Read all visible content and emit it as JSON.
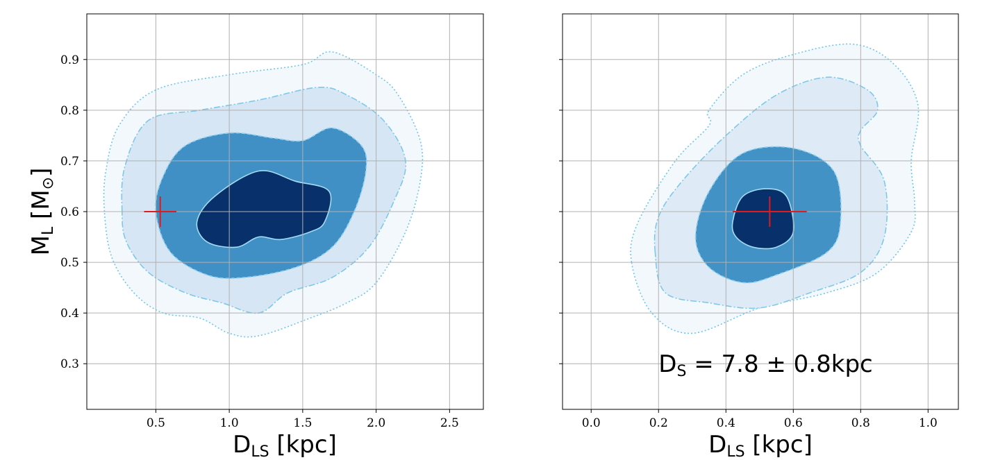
{
  "chart_data": [
    {
      "type": "contour",
      "panel": "left",
      "xlabel_main": "D",
      "xlabel_sub": "LS",
      "xlabel_unit": " [kpc]",
      "ylabel_main": "M",
      "ylabel_sub": "L",
      "ylabel_unit_open": " [M",
      "ylabel_unit_sub": "⊙",
      "ylabel_unit_close": "]",
      "xlim": [
        0.03,
        2.73
      ],
      "ylim": [
        0.21,
        0.99
      ],
      "xticks": [
        0.5,
        1.0,
        1.5,
        2.0,
        2.5
      ],
      "xtick_labels": [
        "0.5",
        "1.0",
        "1.5",
        "2.0",
        "2.5"
      ],
      "yticks": [
        0.3,
        0.4,
        0.5,
        0.6,
        0.7,
        0.8,
        0.9
      ],
      "ytick_labels": [
        "0.3",
        "0.4",
        "0.5",
        "0.6",
        "0.7",
        "0.8",
        "0.9"
      ],
      "grid": true,
      "marker": {
        "x": 0.53,
        "y": 0.6,
        "xerr": 0.11,
        "yerr": 0.03,
        "color": "#e31a1c"
      },
      "contours": [
        {
          "level": "outer",
          "fill": "#f3f8fd",
          "stroke": "#6ec6ea",
          "dash": "dotted",
          "points": [
            [
              0.15,
              0.6
            ],
            [
              0.16,
              0.68
            ],
            [
              0.25,
              0.77
            ],
            [
              0.5,
              0.84
            ],
            [
              1.0,
              0.87
            ],
            [
              1.5,
              0.89
            ],
            [
              1.7,
              0.915
            ],
            [
              2.0,
              0.87
            ],
            [
              2.15,
              0.83
            ],
            [
              2.3,
              0.74
            ],
            [
              2.3,
              0.66
            ],
            [
              2.2,
              0.56
            ],
            [
              2.0,
              0.46
            ],
            [
              1.8,
              0.42
            ],
            [
              1.55,
              0.39
            ],
            [
              1.2,
              0.355
            ],
            [
              1.0,
              0.36
            ],
            [
              0.8,
              0.39
            ],
            [
              0.55,
              0.4
            ],
            [
              0.35,
              0.44
            ],
            [
              0.2,
              0.51
            ]
          ]
        },
        {
          "level": "95%",
          "fill": "#d7e6f4",
          "stroke": "#7dc8e8",
          "dash": "dashdot",
          "points": [
            [
              0.27,
              0.6
            ],
            [
              0.29,
              0.69
            ],
            [
              0.45,
              0.78
            ],
            [
              0.8,
              0.8
            ],
            [
              1.2,
              0.82
            ],
            [
              1.6,
              0.845
            ],
            [
              1.8,
              0.83
            ],
            [
              2.05,
              0.78
            ],
            [
              2.2,
              0.7
            ],
            [
              2.12,
              0.62
            ],
            [
              1.95,
              0.53
            ],
            [
              1.7,
              0.47
            ],
            [
              1.4,
              0.44
            ],
            [
              1.2,
              0.4
            ],
            [
              0.95,
              0.42
            ],
            [
              0.7,
              0.44
            ],
            [
              0.45,
              0.48
            ],
            [
              0.3,
              0.54
            ]
          ]
        },
        {
          "level": "68%",
          "fill": "#4090c6",
          "stroke": "#8fd1ee",
          "dash": "dashed",
          "points": [
            [
              0.5,
              0.6
            ],
            [
              0.55,
              0.67
            ],
            [
              0.7,
              0.73
            ],
            [
              1.0,
              0.755
            ],
            [
              1.3,
              0.745
            ],
            [
              1.5,
              0.74
            ],
            [
              1.7,
              0.765
            ],
            [
              1.9,
              0.73
            ],
            [
              1.93,
              0.68
            ],
            [
              1.85,
              0.6
            ],
            [
              1.7,
              0.53
            ],
            [
              1.45,
              0.49
            ],
            [
              1.1,
              0.47
            ],
            [
              0.85,
              0.475
            ],
            [
              0.6,
              0.52
            ]
          ]
        },
        {
          "level": "39%",
          "fill": "#08306b",
          "stroke": "#a5dcf3",
          "dash": "solid",
          "points": [
            [
              0.78,
              0.58
            ],
            [
              0.9,
              0.63
            ],
            [
              1.2,
              0.68
            ],
            [
              1.45,
              0.66
            ],
            [
              1.68,
              0.64
            ],
            [
              1.65,
              0.58
            ],
            [
              1.55,
              0.56
            ],
            [
              1.35,
              0.545
            ],
            [
              1.2,
              0.55
            ],
            [
              1.05,
              0.53
            ],
            [
              0.85,
              0.54
            ]
          ]
        }
      ]
    },
    {
      "type": "contour",
      "panel": "right",
      "xlabel_main": "D",
      "xlabel_sub": "LS",
      "xlabel_unit": " [kpc]",
      "xlim": [
        -0.085,
        1.09
      ],
      "ylim": [
        0.21,
        0.99
      ],
      "xticks": [
        0.0,
        0.2,
        0.4,
        0.6,
        0.8,
        1.0
      ],
      "xtick_labels": [
        "0.0",
        "0.2",
        "0.4",
        "0.6",
        "0.8",
        "1.0"
      ],
      "yticks": [
        0.3,
        0.4,
        0.5,
        0.6,
        0.7,
        0.8,
        0.9
      ],
      "grid": true,
      "annotation": {
        "main": "D",
        "sub": "S",
        "rest": " = 7.8 ± 0.8kpc",
        "x": 0.2,
        "y": 0.3
      },
      "marker": {
        "x": 0.53,
        "y": 0.6,
        "xerr": 0.11,
        "yerr": 0.03,
        "color": "#e31a1c"
      },
      "contours": [
        {
          "level": "outer",
          "fill": "#f3f8fd",
          "stroke": "#6ec6ea",
          "dash": "dotted",
          "points": [
            [
              0.12,
              0.5
            ],
            [
              0.14,
              0.58
            ],
            [
              0.25,
              0.7
            ],
            [
              0.35,
              0.77
            ],
            [
              0.35,
              0.8
            ],
            [
              0.45,
              0.87
            ],
            [
              0.6,
              0.91
            ],
            [
              0.78,
              0.93
            ],
            [
              0.9,
              0.89
            ],
            [
              0.97,
              0.81
            ],
            [
              0.95,
              0.7
            ],
            [
              0.96,
              0.62
            ],
            [
              0.95,
              0.56
            ],
            [
              0.85,
              0.48
            ],
            [
              0.7,
              0.44
            ],
            [
              0.5,
              0.41
            ],
            [
              0.3,
              0.36
            ],
            [
              0.18,
              0.4
            ]
          ]
        },
        {
          "level": "95%",
          "fill": "#deebf7",
          "stroke": "#7dc8e8",
          "dash": "dashdot",
          "points": [
            [
              0.19,
              0.52
            ],
            [
              0.2,
              0.59
            ],
            [
              0.27,
              0.66
            ],
            [
              0.4,
              0.75
            ],
            [
              0.55,
              0.83
            ],
            [
              0.7,
              0.865
            ],
            [
              0.82,
              0.84
            ],
            [
              0.85,
              0.8
            ],
            [
              0.8,
              0.76
            ],
            [
              0.8,
              0.73
            ],
            [
              0.87,
              0.66
            ],
            [
              0.87,
              0.55
            ],
            [
              0.8,
              0.48
            ],
            [
              0.65,
              0.44
            ],
            [
              0.5,
              0.41
            ],
            [
              0.35,
              0.42
            ],
            [
              0.22,
              0.44
            ]
          ]
        },
        {
          "level": "68%",
          "fill": "#4292c6",
          "stroke": "#8fd1ee",
          "dash": "dashed",
          "points": [
            [
              0.31,
              0.55
            ],
            [
              0.35,
              0.64
            ],
            [
              0.45,
              0.715
            ],
            [
              0.6,
              0.725
            ],
            [
              0.72,
              0.68
            ],
            [
              0.74,
              0.58
            ],
            [
              0.7,
              0.52
            ],
            [
              0.55,
              0.475
            ],
            [
              0.45,
              0.46
            ],
            [
              0.35,
              0.49
            ]
          ]
        },
        {
          "level": "39%",
          "fill": "#08306b",
          "stroke": "#a5dcf3",
          "dash": "solid",
          "points": [
            [
              0.42,
              0.58
            ],
            [
              0.45,
              0.63
            ],
            [
              0.52,
              0.645
            ],
            [
              0.58,
              0.63
            ],
            [
              0.6,
              0.56
            ],
            [
              0.55,
              0.53
            ],
            [
              0.48,
              0.53
            ],
            [
              0.43,
              0.55
            ]
          ]
        }
      ]
    }
  ]
}
